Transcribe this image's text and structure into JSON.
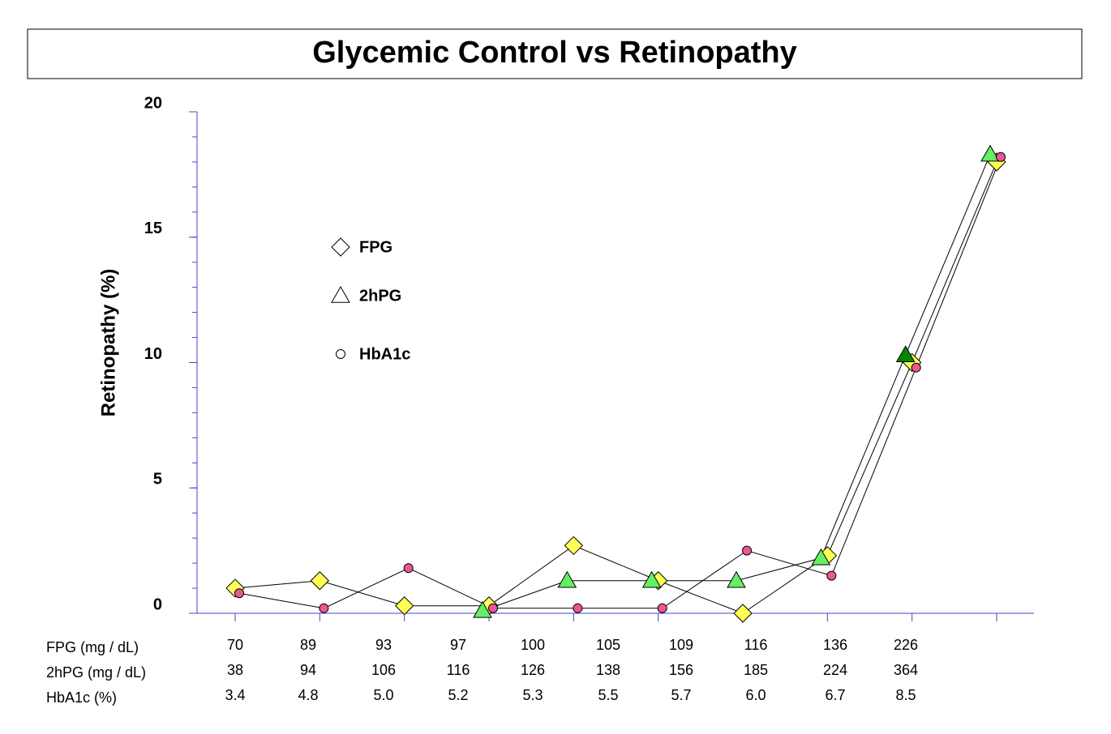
{
  "chart_data": {
    "type": "line",
    "title": "Glycemic Control vs Retinopathy",
    "y_label": "Retinopathy (%)",
    "ylim": [
      0,
      20
    ],
    "yticks": [
      0,
      5,
      10,
      15,
      20
    ],
    "series": [
      {
        "name": "FPG",
        "marker": "diamond",
        "color": "#ffff55",
        "values": [
          1.0,
          1.3,
          0.3,
          0.3,
          2.7,
          1.3,
          0,
          2.3,
          10,
          18
        ]
      },
      {
        "name": "2hPG",
        "marker": "triangle",
        "color": "#66ee66",
        "colors": [
          "#66ee66",
          "#66ee66",
          "#66ee66",
          "#66ee66",
          "#66ee66",
          "#66ee66",
          "#66ee66",
          "#66ee66",
          "#008800",
          "#66ee66"
        ],
        "values": [
          null,
          null,
          null,
          0.1,
          1.3,
          1.3,
          1.3,
          2.2,
          10.3,
          18.3
        ]
      },
      {
        "name": "HbA1c",
        "marker": "circle",
        "color": "#ee5599",
        "values": [
          0.8,
          0.2,
          1.8,
          0.2,
          0.2,
          0.2,
          2.5,
          1.5,
          9.8,
          18.2
        ]
      }
    ],
    "table": {
      "rows": [
        {
          "label": "FPG (mg / dL)",
          "values": [
            "70",
            "89",
            "93",
            "97",
            "100",
            "105",
            "109",
            "116",
            "136",
            "226"
          ]
        },
        {
          "label": "2hPG (mg / dL)",
          "values": [
            "38",
            "94",
            "106",
            "116",
            "126",
            "138",
            "156",
            "185",
            "224",
            "364"
          ]
        },
        {
          "label": "HbA1c (%)",
          "values": [
            "3.4",
            "4.8",
            "5.0",
            "5.2",
            "5.3",
            "5.5",
            "5.7",
            "6.0",
            "6.7",
            "8.5"
          ]
        }
      ]
    }
  }
}
